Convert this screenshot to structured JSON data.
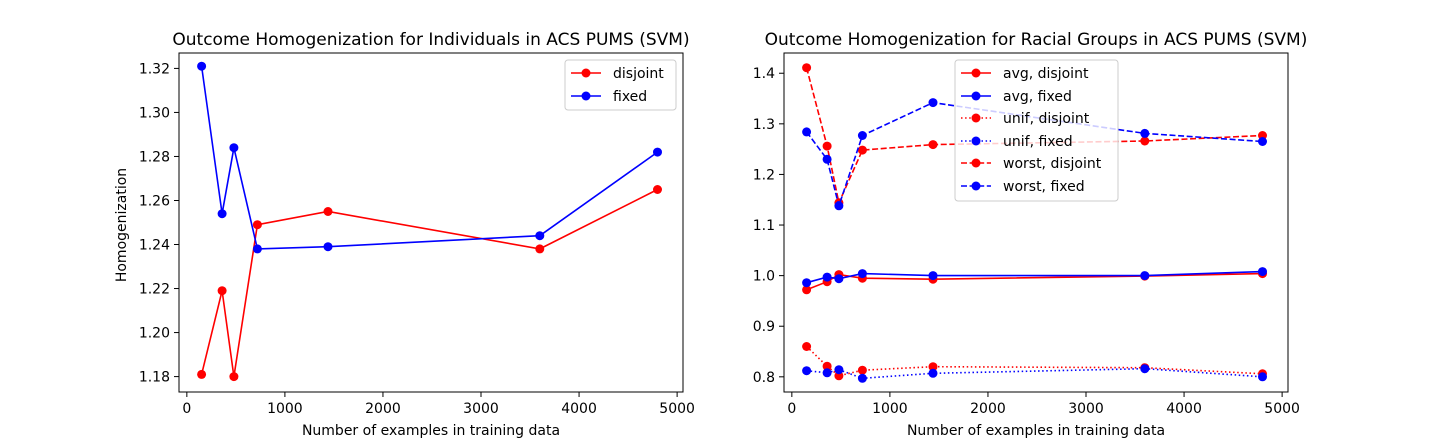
{
  "chart_data": [
    {
      "type": "line",
      "title": "Outcome Homogenization for Individuals in ACS PUMS (SVM)",
      "xlabel": "Number of examples in training data",
      "ylabel": "Homogenization",
      "xlim": [
        -80,
        5060
      ],
      "ylim": [
        1.173,
        1.327
      ],
      "xticks": [
        0,
        1000,
        2000,
        3000,
        4000,
        5000
      ],
      "xtick_labels": [
        "0",
        "1000",
        "2000",
        "3000",
        "4000",
        "5000"
      ],
      "yticks": [
        1.18,
        1.2,
        1.22,
        1.24,
        1.26,
        1.28,
        1.3,
        1.32
      ],
      "ytick_labels": [
        "1.18",
        "1.20",
        "1.22",
        "1.24",
        "1.26",
        "1.28",
        "1.30",
        "1.32"
      ],
      "legend_position": "upper-right",
      "grid": false,
      "series": [
        {
          "name": "disjoint",
          "color": "#ff0000",
          "style": "solid",
          "x": [
            150,
            360,
            480,
            720,
            1440,
            3600,
            4800
          ],
          "y": [
            1.181,
            1.219,
            1.18,
            1.249,
            1.255,
            1.238,
            1.265
          ]
        },
        {
          "name": "fixed",
          "color": "#0000ff",
          "style": "solid",
          "x": [
            150,
            360,
            480,
            720,
            1440,
            3600,
            4800
          ],
          "y": [
            1.321,
            1.254,
            1.284,
            1.238,
            1.239,
            1.244,
            1.282
          ]
        }
      ]
    },
    {
      "type": "line",
      "title": "Outcome Homogenization for Racial Groups in ACS PUMS (SVM)",
      "xlabel": "Number of examples in training data",
      "ylabel": "",
      "xlim": [
        -80,
        5060
      ],
      "ylim": [
        0.77,
        1.44
      ],
      "xticks": [
        0,
        1000,
        2000,
        3000,
        4000,
        5000
      ],
      "xtick_labels": [
        "0",
        "1000",
        "2000",
        "3000",
        "4000",
        "5000"
      ],
      "yticks": [
        0.8,
        0.9,
        1.0,
        1.1,
        1.2,
        1.3,
        1.4
      ],
      "ytick_labels": [
        "0.8",
        "0.9",
        "1.0",
        "1.1",
        "1.2",
        "1.3",
        "1.4"
      ],
      "legend_position": "upper-center",
      "grid": false,
      "series": [
        {
          "name": "avg, disjoint",
          "color": "#ff0000",
          "style": "solid",
          "x": [
            150,
            360,
            480,
            720,
            1440,
            3600,
            4800
          ],
          "y": [
            0.972,
            0.988,
            1.002,
            0.995,
            0.993,
            0.999,
            1.004
          ]
        },
        {
          "name": "avg, fixed",
          "color": "#0000ff",
          "style": "solid",
          "x": [
            150,
            360,
            480,
            720,
            1440,
            3600,
            4800
          ],
          "y": [
            0.986,
            0.997,
            0.994,
            1.004,
            1.0,
            1.0,
            1.008
          ]
        },
        {
          "name": "unif, disjoint",
          "color": "#ff0000",
          "style": "dotted",
          "x": [
            150,
            360,
            480,
            720,
            1440,
            3600,
            4800
          ],
          "y": [
            0.86,
            0.821,
            0.802,
            0.813,
            0.82,
            0.818,
            0.806
          ]
        },
        {
          "name": "unif, fixed",
          "color": "#0000ff",
          "style": "dotted",
          "x": [
            150,
            360,
            480,
            720,
            1440,
            3600,
            4800
          ],
          "y": [
            0.812,
            0.808,
            0.814,
            0.797,
            0.807,
            0.816,
            0.8
          ]
        },
        {
          "name": "worst, disjoint",
          "color": "#ff0000",
          "style": "dashed",
          "x": [
            150,
            360,
            480,
            720,
            1440,
            3600,
            4800
          ],
          "y": [
            1.411,
            1.256,
            1.144,
            1.248,
            1.259,
            1.266,
            1.277
          ]
        },
        {
          "name": "worst, fixed",
          "color": "#0000ff",
          "style": "dashed",
          "x": [
            150,
            360,
            480,
            720,
            1440,
            3600,
            4800
          ],
          "y": [
            1.284,
            1.23,
            1.138,
            1.277,
            1.342,
            1.281,
            1.265
          ]
        }
      ]
    }
  ]
}
